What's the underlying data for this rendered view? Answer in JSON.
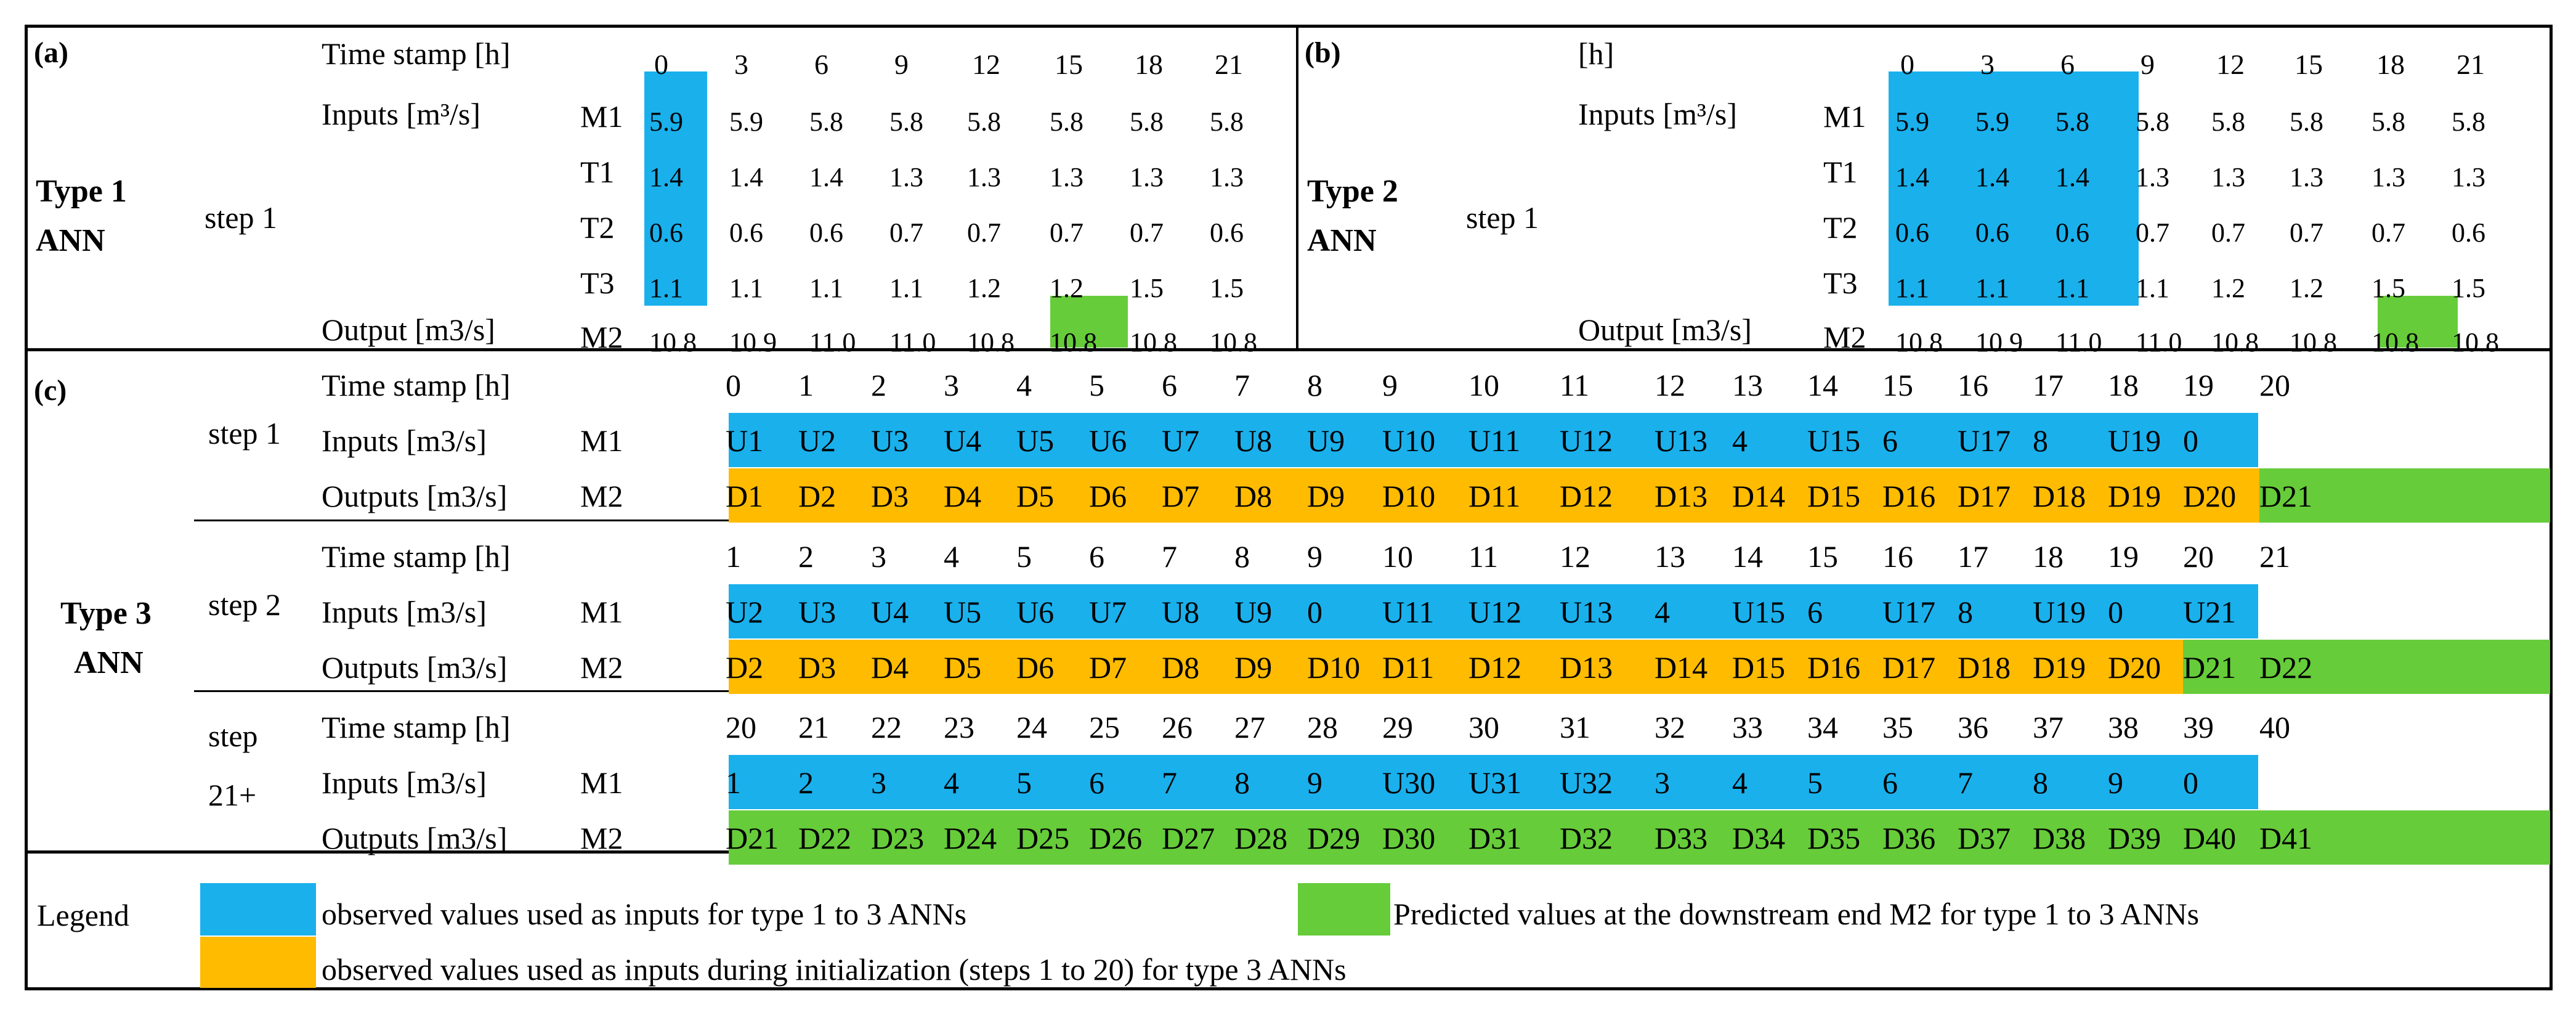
{
  "colors": {
    "observed": "#1ab0ec",
    "init": "#ffbb00",
    "predicted": "#66cc3a"
  },
  "panel_a": {
    "label": "(a)",
    "type_label": [
      "Type 1",
      "ANN"
    ],
    "step": "step 1",
    "time_label": "Time stamp [h]",
    "times": [
      "0",
      "3",
      "6",
      "9",
      "12",
      "15",
      "18",
      "21"
    ],
    "inputs_label": "Inputs [m³/s]",
    "output_label": "Output [m3/s]",
    "rows": [
      {
        "name": "M1",
        "values": [
          "5.9",
          "5.9",
          "5.8",
          "5.8",
          "5.8",
          "5.8",
          "5.8",
          "5.8"
        ]
      },
      {
        "name": "T1",
        "values": [
          "1.4",
          "1.4",
          "1.4",
          "1.3",
          "1.3",
          "1.3",
          "1.3",
          "1.3"
        ]
      },
      {
        "name": "T2",
        "values": [
          "0.6",
          "0.6",
          "0.6",
          "0.7",
          "0.7",
          "0.7",
          "0.7",
          "0.6"
        ]
      },
      {
        "name": "T3",
        "values": [
          "1.1",
          "1.1",
          "1.1",
          "1.1",
          "1.2",
          "1.2",
          "1.5",
          "1.5"
        ]
      },
      {
        "name": "M2",
        "values": [
          "10.8",
          "10.9",
          "11.0",
          "11.0",
          "10.8",
          "10.8",
          "10.8",
          "10.8"
        ]
      }
    ]
  },
  "panel_b": {
    "label": "(b)",
    "type_label": [
      "Type 2",
      "ANN"
    ],
    "step": "step 1",
    "time_label": "[h]",
    "times": [
      "0",
      "3",
      "6",
      "9",
      "12",
      "15",
      "18",
      "21"
    ],
    "inputs_label": "Inputs [m³/s]",
    "output_label": "Output [m3/s]",
    "rows": [
      {
        "name": "M1",
        "values": [
          "5.9",
          "5.9",
          "5.8",
          "5.8",
          "5.8",
          "5.8",
          "5.8",
          "5.8"
        ]
      },
      {
        "name": "T1",
        "values": [
          "1.4",
          "1.4",
          "1.4",
          "1.3",
          "1.3",
          "1.3",
          "1.3",
          "1.3"
        ]
      },
      {
        "name": "T2",
        "values": [
          "0.6",
          "0.6",
          "0.6",
          "0.7",
          "0.7",
          "0.7",
          "0.7",
          "0.6"
        ]
      },
      {
        "name": "T3",
        "values": [
          "1.1",
          "1.1",
          "1.1",
          "1.1",
          "1.2",
          "1.2",
          "1.5",
          "1.5"
        ]
      },
      {
        "name": "M2",
        "values": [
          "10.8",
          "10.9",
          "11.0",
          "11.0",
          "10.8",
          "10.8",
          "10.8",
          "10.8"
        ]
      }
    ]
  },
  "panel_c": {
    "label": "(c)",
    "type_label": [
      "Type 3",
      "ANN"
    ],
    "time_label": "Time stamp [h]",
    "inputs_label": "Inputs [m3/s]",
    "outputs_label": "Outputs [m3/s]",
    "m1": "M1",
    "m2": "M2",
    "steps": [
      {
        "step_lines": [
          "step 1"
        ],
        "times": [
          "0",
          "1",
          "2",
          "3",
          "4",
          "5",
          "6",
          "7",
          "8",
          "9",
          "10",
          "11",
          "12",
          "13",
          "14",
          "15",
          "16",
          "17",
          "18",
          "19",
          "20"
        ],
        "inputs": [
          "U1",
          "U2",
          "U3",
          "U4",
          "U5",
          "U6",
          "U7",
          "U8",
          "U9",
          "U10",
          "U11",
          "U12",
          "U13",
          "4",
          "U15",
          "6",
          "U17",
          "8",
          "U19",
          "0"
        ],
        "outputs": [
          "D1",
          "D2",
          "D3",
          "D4",
          "D5",
          "D6",
          "D7",
          "D8",
          "D9",
          "D10",
          "D11",
          "D12",
          "D13",
          "D14",
          "D15",
          "D16",
          "D17",
          "D18",
          "D19",
          "D20",
          "D21"
        ],
        "init_outputs": 20
      },
      {
        "step_lines": [
          "step 2"
        ],
        "times": [
          "1",
          "2",
          "3",
          "4",
          "5",
          "6",
          "7",
          "8",
          "9",
          "10",
          "11",
          "12",
          "13",
          "14",
          "15",
          "16",
          "17",
          "18",
          "19",
          "20",
          "21"
        ],
        "inputs": [
          "U2",
          "U3",
          "U4",
          "U5",
          "U6",
          "U7",
          "U8",
          "U9",
          "0",
          "U11",
          "U12",
          "U13",
          "4",
          "U15",
          "6",
          "U17",
          "8",
          "U19",
          "0",
          "U21"
        ],
        "outputs": [
          "D2",
          "D3",
          "D4",
          "D5",
          "D6",
          "D7",
          "D8",
          "D9",
          "D10",
          "D11",
          "D12",
          "D13",
          "D14",
          "D15",
          "D16",
          "D17",
          "D18",
          "D19",
          "D20",
          "D21",
          "D22"
        ],
        "init_outputs": 19
      },
      {
        "step_lines": [
          "step",
          "21+"
        ],
        "times": [
          "20",
          "21",
          "22",
          "23",
          "24",
          "25",
          "26",
          "27",
          "28",
          "29",
          "30",
          "31",
          "32",
          "33",
          "34",
          "35",
          "36",
          "37",
          "38",
          "39",
          "40"
        ],
        "inputs": [
          "1",
          "2",
          "3",
          "4",
          "5",
          "6",
          "7",
          "8",
          "9",
          "U30",
          "U31",
          "U32",
          "3",
          "4",
          "5",
          "6",
          "7",
          "8",
          "9",
          "0"
        ],
        "outputs": [
          "D21",
          "D22",
          "D23",
          "D24",
          "D25",
          "D26",
          "D27",
          "D28",
          "D29",
          "D30",
          "D31",
          "D32",
          "D33",
          "D34",
          "D35",
          "D36",
          "D37",
          "D38",
          "D39",
          "D40",
          "D41"
        ],
        "init_outputs": 0
      }
    ]
  },
  "legend": {
    "title": "Legend",
    "observed_text": "observed values used as inputs for type 1 to 3 ANNs",
    "predicted_text": "Predicted values at the downstream end M2 for type 1 to 3 ANNs",
    "init_text": "observed values used as inputs during initialization (steps 1 to 20) for type 3 ANNs"
  }
}
